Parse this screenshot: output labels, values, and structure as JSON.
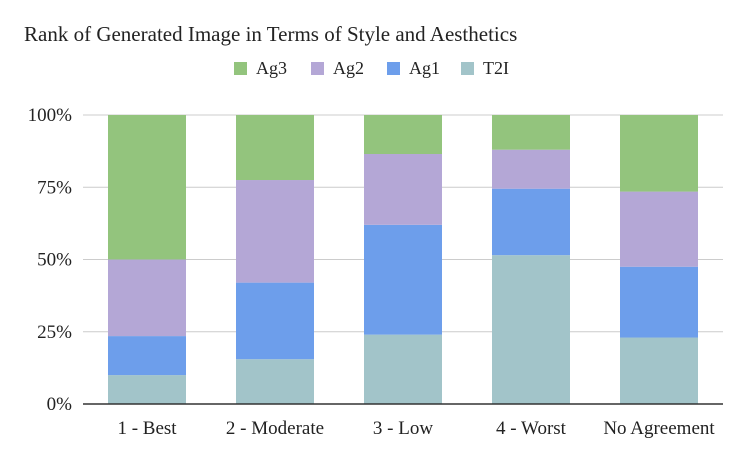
{
  "chart_data": {
    "type": "bar",
    "stacked": true,
    "percent_stacked": true,
    "title": "Rank of Generated Image in Terms of Style and Aesthetics",
    "xlabel": "",
    "ylabel": "",
    "categories": [
      "1 - Best",
      "2 - Moderate",
      "3 - Low",
      "4 - Worst",
      "No Agreement"
    ],
    "ylim": [
      0,
      100
    ],
    "yticks": [
      "0%",
      "25%",
      "50%",
      "75%",
      "100%"
    ],
    "yticks_values": [
      0,
      25,
      50,
      75,
      100
    ],
    "grid": true,
    "legend_position": "top",
    "legend_order": [
      "Ag3",
      "Ag2",
      "Ag1",
      "T2I"
    ],
    "series": [
      {
        "name": "T2I",
        "color": "#a2c4c9",
        "values": [
          10,
          15.5,
          24,
          51.5,
          23
        ]
      },
      {
        "name": "Ag1",
        "color": "#6d9eeb",
        "values": [
          13.5,
          26.5,
          38,
          23,
          24.5
        ]
      },
      {
        "name": "Ag2",
        "color": "#b4a7d6",
        "values": [
          26.5,
          35.5,
          24.5,
          13.5,
          26
        ]
      },
      {
        "name": "Ag3",
        "color": "#93c47d",
        "values": [
          50,
          22.5,
          13.5,
          12,
          26.5
        ]
      }
    ]
  }
}
